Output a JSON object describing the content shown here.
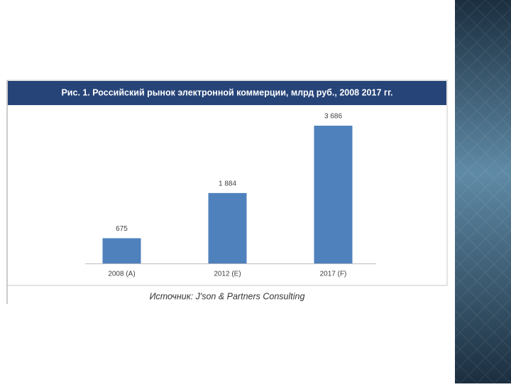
{
  "chart_data": {
    "type": "bar",
    "title": "Рис. 1. Российский рынок электронной коммерции, млрд руб., 2008 2017 гг.",
    "categories": [
      "2008 (A)",
      "2012 (E)",
      "2017 (F)"
    ],
    "values": [
      675,
      1884,
      3686
    ],
    "value_labels": [
      "675",
      "1 884",
      "3 686"
    ],
    "color": "#4f81bd",
    "source": "Источник: J'son & Partners Consulting"
  }
}
